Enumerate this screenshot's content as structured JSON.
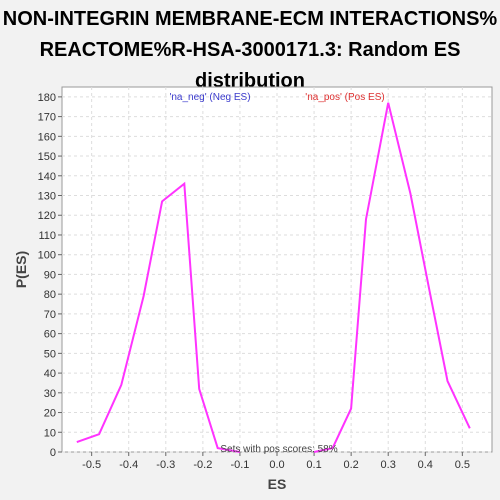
{
  "title_lines": [
    "NON-INTEGRIN MEMBRANE-ECM INTERACTIONS%",
    "REACTOME%R-HSA-3000171.3: Random ES",
    "distribution"
  ],
  "colors": {
    "line": "#ff33ff",
    "neg_label": "#3a3acc",
    "pos_label": "#dd3030",
    "plot_bg": "#ffffff",
    "grid": "#dddddd"
  },
  "chart_data": {
    "type": "line",
    "title": "NON-INTEGRIN MEMBRANE-ECM INTERACTIONS% REACTOME%R-HSA-3000171.3: Random ES distribution",
    "xlabel": "ES",
    "ylabel": "P(ES)",
    "xlim": [
      -0.58,
      0.58
    ],
    "ylim": [
      0,
      185
    ],
    "x_ticks": [
      "-0.5",
      "-0.4",
      "-0.3",
      "-0.2",
      "-0.1",
      "0.0",
      "0.1",
      "0.2",
      "0.3",
      "0.4",
      "0.5"
    ],
    "y_ticks": [
      "0",
      "10",
      "20",
      "30",
      "40",
      "50",
      "60",
      "70",
      "80",
      "90",
      "100",
      "110",
      "120",
      "130",
      "140",
      "150",
      "160",
      "170",
      "180"
    ],
    "grid": true,
    "series": [
      {
        "name": "'na_neg' (Neg ES)",
        "x": [
          -0.54,
          -0.48,
          -0.42,
          -0.36,
          -0.31,
          -0.25,
          -0.21,
          -0.16,
          -0.1
        ],
        "y": [
          5,
          9,
          34,
          79,
          127,
          136,
          32,
          2,
          0
        ]
      },
      {
        "name": "'na_pos' (Pos ES)",
        "x": [
          0.1,
          0.15,
          0.2,
          0.24,
          0.3,
          0.36,
          0.41,
          0.46,
          0.52
        ],
        "y": [
          0,
          2,
          22,
          118,
          177,
          131,
          83,
          36,
          12
        ]
      }
    ],
    "annotation": "Sets with pos scores: 58%"
  }
}
